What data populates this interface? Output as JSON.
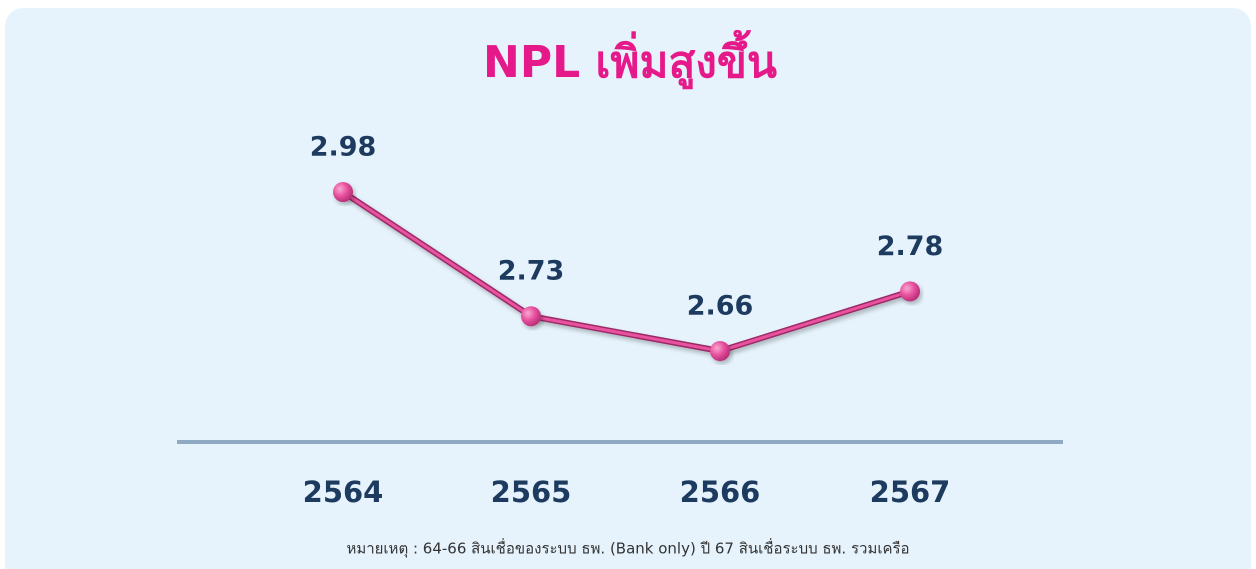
{
  "chart_data": {
    "type": "line",
    "title": "NPL เพิ่มสูงขึ้น",
    "categories": [
      "2564",
      "2565",
      "2566",
      "2567"
    ],
    "values": [
      2.98,
      2.73,
      2.66,
      2.78
    ],
    "color": "#e8529f",
    "note": "หมายเหตุ : 64-66 สินเชื่อของระบบ ธพ. (Bank only) ปี 67 สินเชื่อระบบ ธพ. รวมเครือ"
  }
}
